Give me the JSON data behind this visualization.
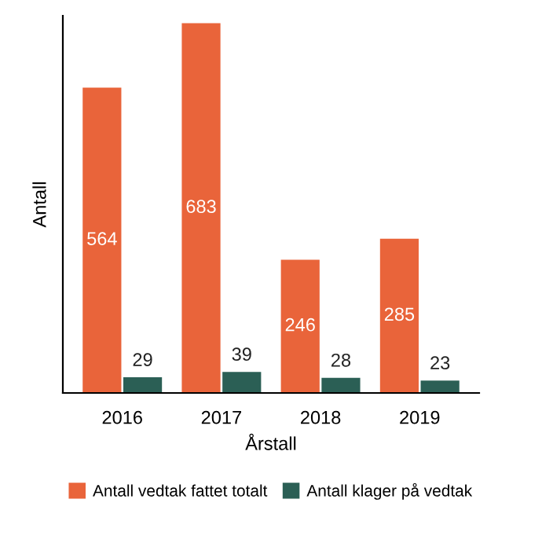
{
  "chart_data": {
    "type": "bar",
    "xlabel": "Årstall",
    "ylabel": "Antall",
    "categories": [
      "2016",
      "2017",
      "2018",
      "2019"
    ],
    "series": [
      {
        "name": "Antall vedtak fattet totalt",
        "color": "#e9643a",
        "values": [
          564,
          683,
          246,
          285
        ]
      },
      {
        "name": "Antall klager på vedtak",
        "color": "#2b5f55",
        "values": [
          29,
          39,
          28,
          23
        ]
      }
    ],
    "data_labels": true,
    "legend": "bottom",
    "grid": false
  }
}
